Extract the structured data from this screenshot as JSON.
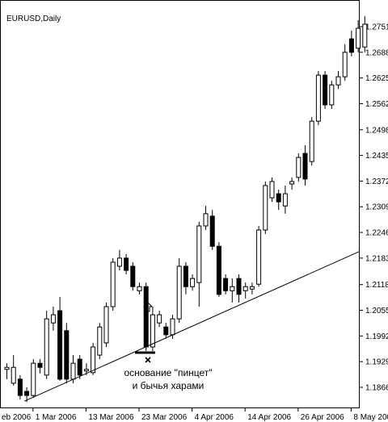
{
  "chart_data": {
    "type": "candlestick",
    "title": "EURUSD,Daily",
    "open": [
      1.191,
      1.1876,
      1.1886,
      1.1856,
      1.1846,
      1.1925,
      1.1896,
      1.2024,
      1.2054,
      1.2005,
      1.1886,
      1.1935,
      1.1906,
      1.1902,
      1.1945,
      1.1975,
      1.2064,
      1.2163,
      1.2183,
      1.2163,
      1.2103,
      1.2113,
      1.1965,
      1.2024,
      1.2014,
      1.1995,
      1.2034,
      1.2163,
      1.2113,
      1.2123,
      1.2262,
      1.2286,
      1.2212,
      1.2133,
      1.2103,
      1.2133,
      1.2103,
      1.2107,
      1.2119,
      1.2252,
      1.2331,
      1.2341,
      1.2311,
      1.2365,
      1.2381,
      1.244,
      1.242,
      1.2519,
      1.2632,
      1.2559,
      1.2608,
      1.2628,
      1.2721,
      1.2698,
      1.2701
    ],
    "high": [
      1.1925,
      1.1945,
      1.1896,
      1.1866,
      1.1935,
      1.1935,
      1.2054,
      1.2064,
      1.2088,
      1.2024,
      1.1945,
      1.1945,
      1.1925,
      1.1975,
      1.2024,
      1.2074,
      1.2183,
      1.2203,
      1.2193,
      1.2173,
      1.2123,
      1.2123,
      1.2064,
      1.2054,
      1.2024,
      1.2044,
      1.2183,
      1.2173,
      1.2143,
      1.2272,
      1.2311,
      1.2301,
      1.2222,
      1.2143,
      1.2133,
      1.2143,
      1.2123,
      1.2123,
      1.2262,
      1.2371,
      1.2381,
      1.2351,
      1.2361,
      1.2381,
      1.244,
      1.246,
      1.2529,
      1.2642,
      1.2642,
      1.2618,
      1.2642,
      1.2708,
      1.2741,
      1.2767,
      1.2777
    ],
    "low": [
      1.1886,
      1.187,
      1.1836,
      1.183,
      1.184,
      1.19,
      1.1886,
      1.2005,
      1.1882,
      1.1876,
      1.1876,
      1.1886,
      1.1896,
      1.1896,
      1.1935,
      1.1965,
      1.2054,
      1.2153,
      1.2143,
      1.2103,
      1.2094,
      1.1955,
      1.1955,
      1.2014,
      1.1985,
      1.1985,
      1.2024,
      1.2094,
      1.2103,
      1.2064,
      1.2252,
      1.2203,
      1.2088,
      1.2094,
      1.2074,
      1.2074,
      1.2084,
      1.2094,
      1.2113,
      1.2242,
      1.2321,
      1.2301,
      1.2292,
      1.2351,
      1.2371,
      1.2361,
      1.241,
      1.2509,
      1.2549,
      1.2549,
      1.2598,
      1.2618,
      1.2678,
      1.2688,
      1.2688
    ],
    "close": [
      1.1915,
      1.1915,
      1.1846,
      1.1846,
      1.1925,
      1.1915,
      1.2034,
      1.2044,
      1.1886,
      1.1886,
      1.1925,
      1.1896,
      1.191,
      1.1965,
      1.2014,
      1.2064,
      1.2173,
      1.2183,
      1.2153,
      1.2113,
      1.2113,
      1.1965,
      1.2044,
      1.2044,
      1.1995,
      1.2034,
      1.2163,
      1.2113,
      1.2133,
      1.2262,
      1.2292,
      1.2212,
      1.2094,
      1.2103,
      1.2113,
      1.2094,
      1.2113,
      1.2113,
      1.2252,
      1.2361,
      1.2371,
      1.2321,
      1.2341,
      1.2371,
      1.243,
      1.2377,
      1.2519,
      1.2632,
      1.2559,
      1.2608,
      1.2628,
      1.2688,
      1.2688,
      1.2747,
      1.2757
    ],
    "xticks": [
      {
        "value": -4,
        "label": "eb 2006"
      },
      {
        "value": 4,
        "label": "1 Mar 2006"
      },
      {
        "value": 12,
        "label": "13 Mar 2006"
      },
      {
        "value": 20,
        "label": "23 Mar 2006"
      },
      {
        "value": 28,
        "label": "4 Apr 2006"
      },
      {
        "value": 36,
        "label": "14 Apr 2006"
      },
      {
        "value": 44,
        "label": "26 Apr 2006"
      },
      {
        "value": 52,
        "label": "8 May 2006"
      }
    ],
    "yticks": [
      1.2751,
      1.2688,
      1.2625,
      1.2562,
      1.2498,
      1.2435,
      1.2372,
      1.2309,
      1.2246,
      1.2183,
      1.2118,
      1.2055,
      1.1992,
      1.1929,
      1.1866
    ],
    "trendline": {
      "x": [
        2.7,
        53.2
      ],
      "y": [
        1.1832,
        1.2199
      ]
    },
    "annotations": [
      "основание \"пинцет\"",
      "и бычья харами"
    ]
  }
}
